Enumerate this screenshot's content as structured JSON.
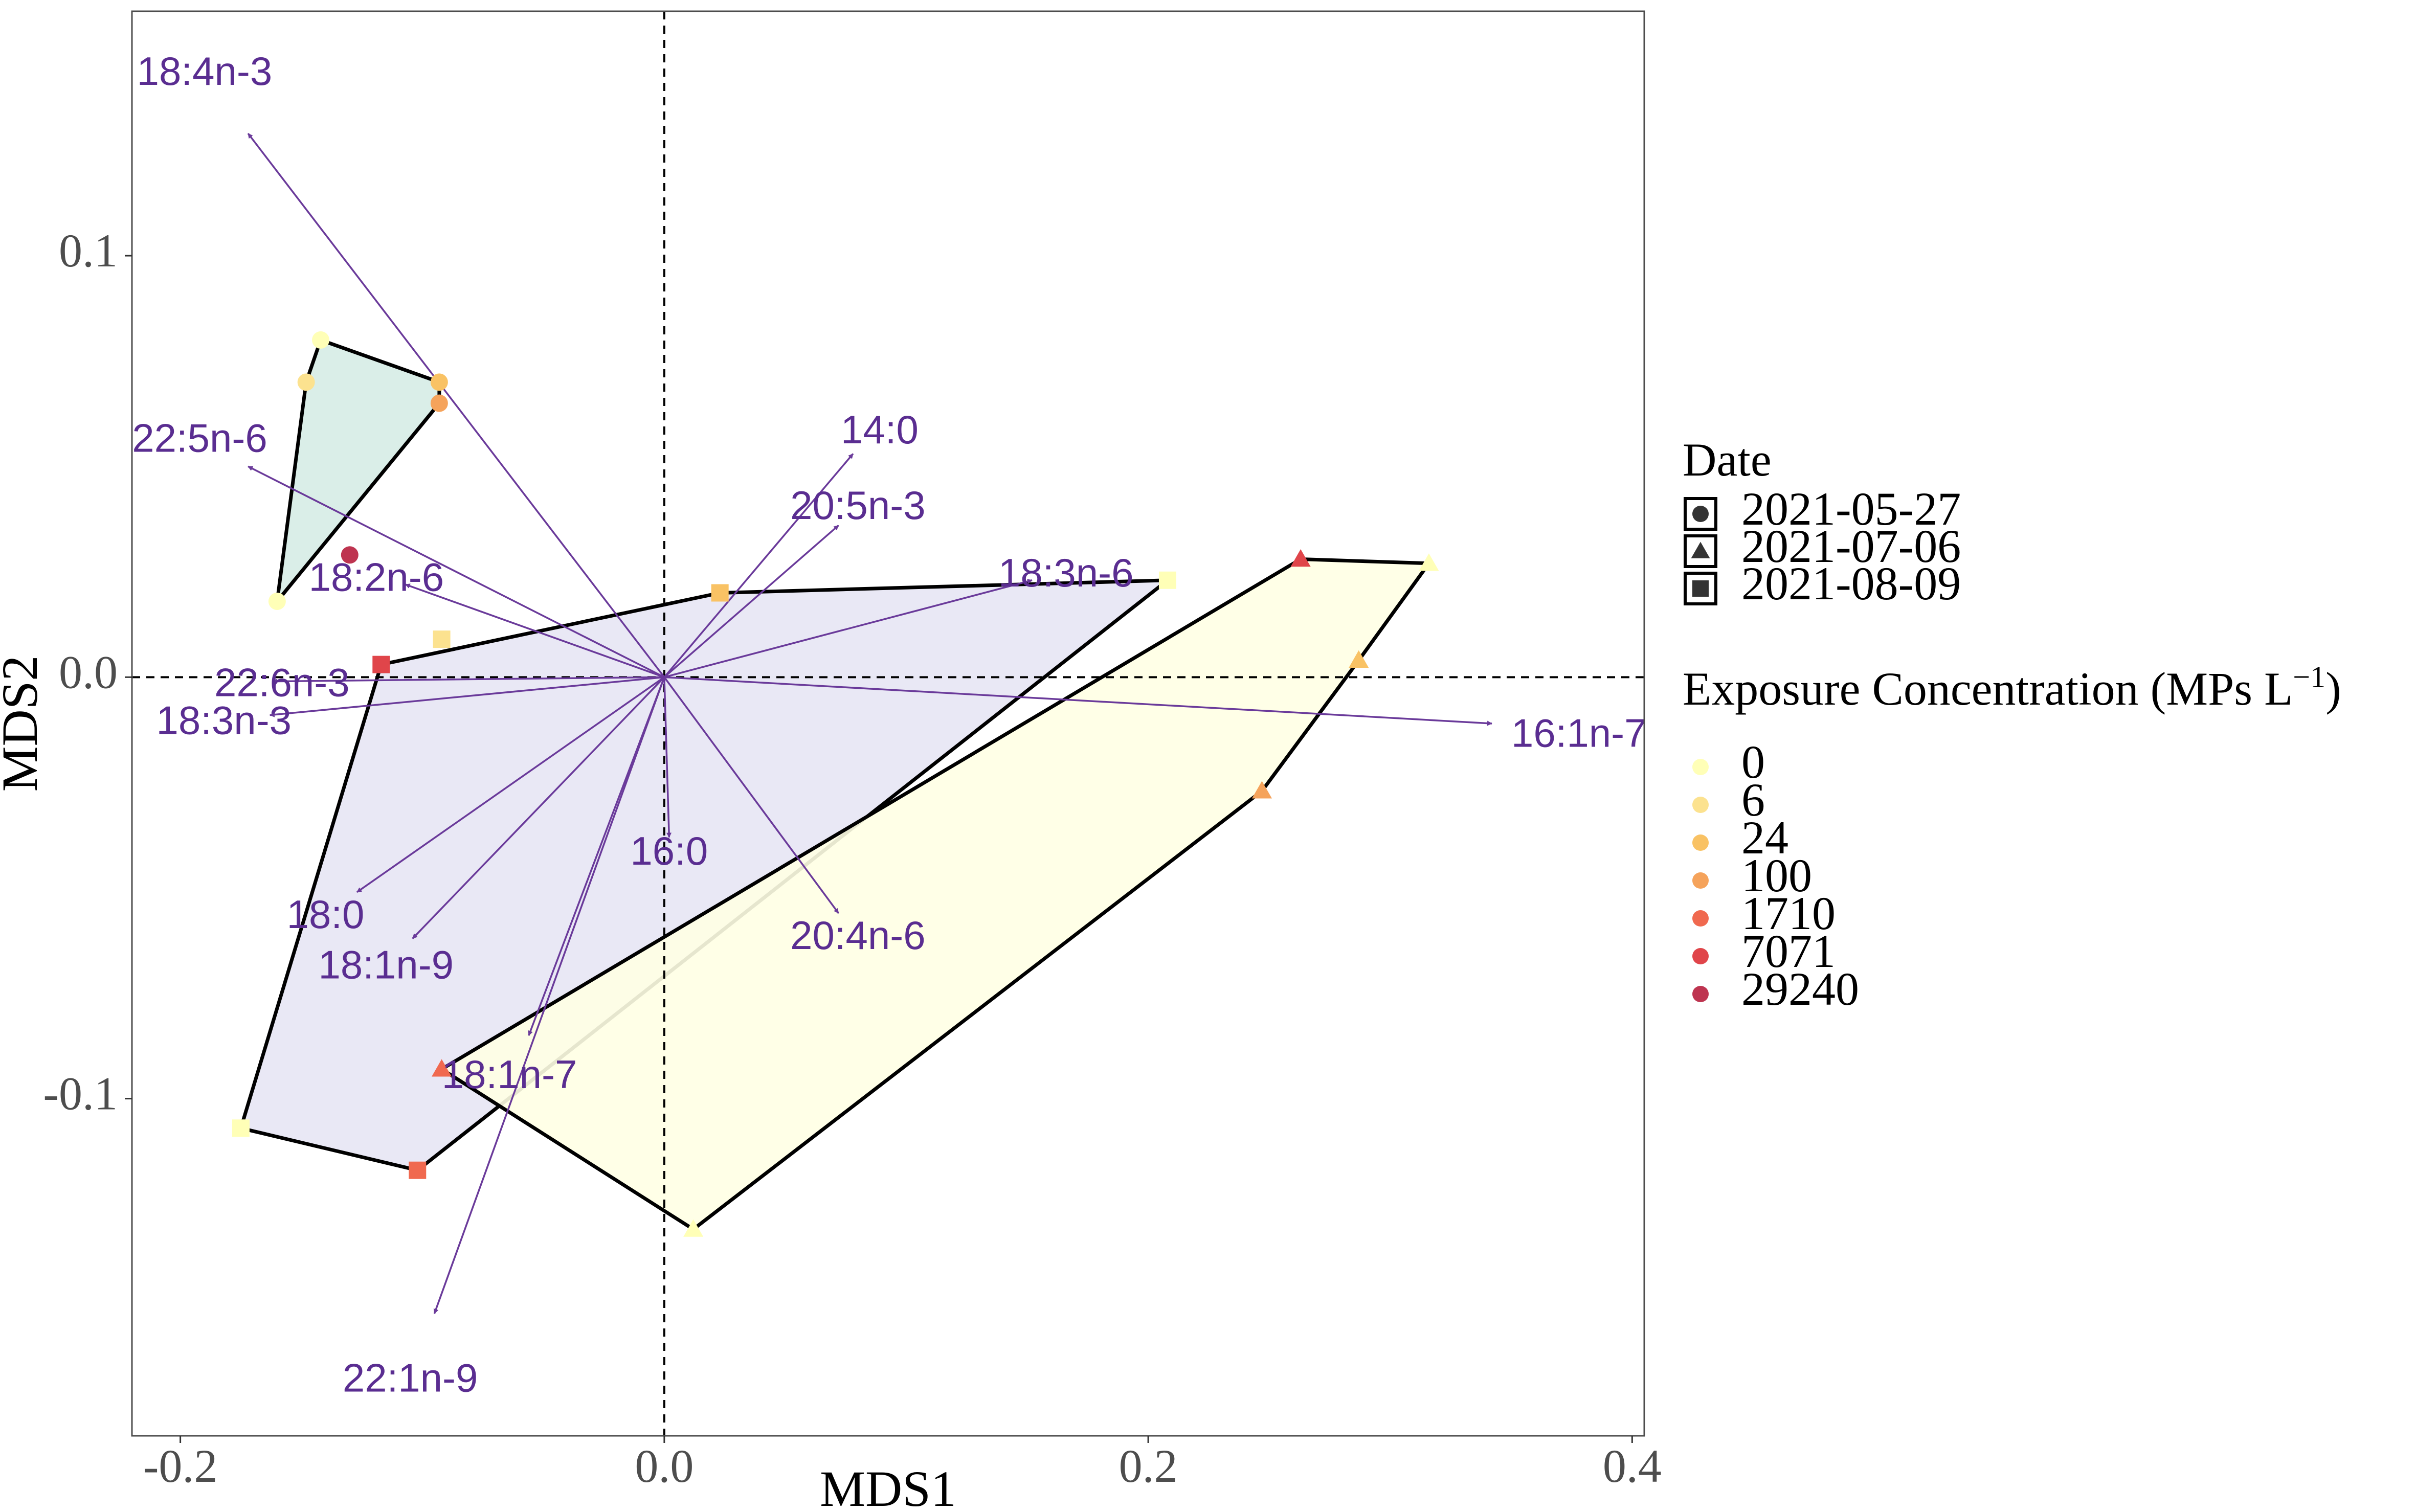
{
  "chart_data": {
    "type": "scatter",
    "xlabel": "MDS1",
    "ylabel": "MDS2",
    "xlim": [
      -0.22,
      0.405
    ],
    "ylim": [
      -0.18,
      0.158
    ],
    "x_ticks": [
      {
        "value": -0.2,
        "label": "-0.2"
      },
      {
        "value": 0.0,
        "label": "0.0"
      },
      {
        "value": 0.2,
        "label": "0.2"
      },
      {
        "value": 0.4,
        "label": "0.4"
      }
    ],
    "y_ticks": [
      {
        "value": 0.1,
        "label": "0.1"
      },
      {
        "value": 0.0,
        "label": "0.0"
      },
      {
        "value": -0.1,
        "label": "-0.1"
      }
    ],
    "reference_lines": {
      "x": 0,
      "y": 0,
      "style": "dashed"
    },
    "grid": false,
    "legend_placement": "right",
    "legends": {
      "shape": {
        "title": "Date",
        "entries": [
          {
            "label": "2021-05-27",
            "shape": "circle"
          },
          {
            "label": "2021-07-06",
            "shape": "triangle"
          },
          {
            "label": "2021-08-09",
            "shape": "square"
          }
        ]
      },
      "color": {
        "title": "Exposure Concentration (MPs L",
        "title_superscript": "−1",
        "title_close": ")",
        "entries": [
          {
            "label": "0",
            "color": "#FFFFB7"
          },
          {
            "label": "6",
            "color": "#FCE28F"
          },
          {
            "label": "24",
            "color": "#F9C264"
          },
          {
            "label": "100",
            "color": "#F5A35B"
          },
          {
            "label": "1710",
            "color": "#F0694F"
          },
          {
            "label": "7071",
            "color": "#E0454A"
          },
          {
            "label": "29240",
            "color": "#BE3450"
          }
        ]
      }
    },
    "points": [
      {
        "x": -0.142,
        "y": 0.08,
        "shape": "circle",
        "color": "#FFFFB7"
      },
      {
        "x": -0.148,
        "y": 0.07,
        "shape": "circle",
        "color": "#FCE28F"
      },
      {
        "x": -0.093,
        "y": 0.07,
        "shape": "circle",
        "color": "#F9C264"
      },
      {
        "x": -0.093,
        "y": 0.065,
        "shape": "circle",
        "color": "#F5A35B"
      },
      {
        "x": -0.13,
        "y": 0.029,
        "shape": "circle",
        "color": "#BE3450"
      },
      {
        "x": -0.16,
        "y": 0.018,
        "shape": "circle",
        "color": "#FFFFB7"
      },
      {
        "x": 0.263,
        "y": 0.028,
        "shape": "triangle",
        "color": "#E0454A"
      },
      {
        "x": 0.316,
        "y": 0.027,
        "shape": "triangle",
        "color": "#FFFFB7"
      },
      {
        "x": 0.287,
        "y": 0.004,
        "shape": "triangle",
        "color": "#F9C264"
      },
      {
        "x": 0.247,
        "y": -0.027,
        "shape": "triangle",
        "color": "#F5A35B"
      },
      {
        "x": -0.092,
        "y": -0.093,
        "shape": "triangle",
        "color": "#F0694F"
      },
      {
        "x": 0.012,
        "y": -0.131,
        "shape": "triangle",
        "color": "#FFFFB7"
      },
      {
        "x": 0.023,
        "y": 0.02,
        "shape": "square",
        "color": "#F9C264"
      },
      {
        "x": 0.208,
        "y": 0.023,
        "shape": "square",
        "color": "#FFFFB7"
      },
      {
        "x": -0.092,
        "y": 0.009,
        "shape": "square",
        "color": "#FCE28F"
      },
      {
        "x": -0.117,
        "y": 0.003,
        "shape": "square",
        "color": "#E0454A"
      },
      {
        "x": -0.175,
        "y": -0.107,
        "shape": "square",
        "color": "#FFFFB7"
      },
      {
        "x": -0.102,
        "y": -0.117,
        "shape": "square",
        "color": "#F0694F"
      }
    ],
    "hulls": [
      {
        "group": "2021-05-27",
        "fill": "#D6ECE6",
        "points": [
          [
            -0.142,
            0.08
          ],
          [
            -0.093,
            0.07
          ],
          [
            -0.093,
            0.065
          ],
          [
            -0.16,
            0.018
          ],
          [
            -0.148,
            0.07
          ]
        ]
      },
      {
        "group": "2021-08-09",
        "fill": "#E7E6F4",
        "points": [
          [
            -0.117,
            0.003
          ],
          [
            0.023,
            0.02
          ],
          [
            0.208,
            0.023
          ],
          [
            -0.102,
            -0.117
          ],
          [
            -0.175,
            -0.107
          ]
        ]
      },
      {
        "group": "2021-07-06",
        "fill": "#FFFFE4",
        "points": [
          [
            0.263,
            0.028
          ],
          [
            0.316,
            0.027
          ],
          [
            0.287,
            0.004
          ],
          [
            0.247,
            -0.027
          ],
          [
            0.012,
            -0.131
          ],
          [
            -0.092,
            -0.093
          ]
        ]
      }
    ],
    "vectors": [
      {
        "name": "18:4n-3",
        "x": -0.172,
        "y": 0.129,
        "lx": -0.19,
        "ly": 0.143
      },
      {
        "name": "22:5n-6",
        "x": -0.172,
        "y": 0.05,
        "lx": -0.192,
        "ly": 0.056
      },
      {
        "name": "18:2n-6",
        "x": -0.107,
        "y": 0.022,
        "lx": -0.119,
        "ly": 0.023
      },
      {
        "name": "22:6n-3",
        "x": -0.162,
        "y": -0.001,
        "lx": -0.158,
        "ly": -0.002
      },
      {
        "name": "18:3n-3",
        "x": -0.163,
        "y": -0.009,
        "lx": -0.182,
        "ly": -0.011
      },
      {
        "name": "14:0",
        "x": 0.078,
        "y": 0.053,
        "lx": 0.089,
        "ly": 0.058
      },
      {
        "name": "20:5n-3",
        "x": 0.072,
        "y": 0.036,
        "lx": 0.08,
        "ly": 0.04
      },
      {
        "name": "18:3n-6",
        "x": 0.152,
        "y": 0.023,
        "lx": 0.166,
        "ly": 0.024
      },
      {
        "name": "16:1n-7",
        "x": 0.342,
        "y": -0.011,
        "lx": 0.378,
        "ly": -0.014
      },
      {
        "name": "16:0",
        "x": 0.002,
        "y": -0.038,
        "lx": 0.002,
        "ly": -0.042
      },
      {
        "name": "20:4n-6",
        "x": 0.072,
        "y": -0.056,
        "lx": 0.08,
        "ly": -0.062
      },
      {
        "name": "18:0",
        "x": -0.127,
        "y": -0.051,
        "lx": -0.14,
        "ly": -0.057
      },
      {
        "name": "18:1n-9",
        "x": -0.104,
        "y": -0.062,
        "lx": -0.115,
        "ly": -0.069
      },
      {
        "name": "18:1n-7",
        "x": -0.056,
        "y": -0.085,
        "lx": -0.064,
        "ly": -0.095
      },
      {
        "name": "22:1n-9",
        "x": -0.095,
        "y": -0.151,
        "lx": -0.105,
        "ly": -0.167
      }
    ]
  }
}
